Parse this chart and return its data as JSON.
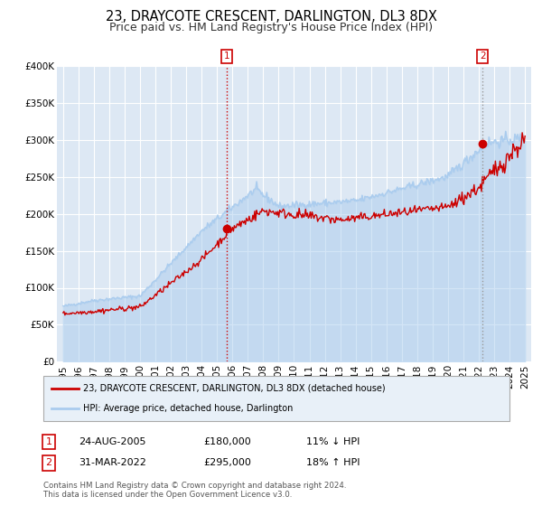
{
  "title": "23, DRAYCOTE CRESCENT, DARLINGTON, DL3 8DX",
  "subtitle": "Price paid vs. HM Land Registry's House Price Index (HPI)",
  "ylim": [
    0,
    400000
  ],
  "yticks": [
    0,
    50000,
    100000,
    150000,
    200000,
    250000,
    300000,
    350000,
    400000
  ],
  "ytick_labels": [
    "£0",
    "£50K",
    "£100K",
    "£150K",
    "£200K",
    "£250K",
    "£300K",
    "£350K",
    "£400K"
  ],
  "xlim_start": 1994.6,
  "xlim_end": 2025.4,
  "xticks": [
    1995,
    1996,
    1997,
    1998,
    1999,
    2000,
    2001,
    2002,
    2003,
    2004,
    2005,
    2006,
    2007,
    2008,
    2009,
    2010,
    2011,
    2012,
    2013,
    2014,
    2015,
    2016,
    2017,
    2018,
    2019,
    2020,
    2021,
    2022,
    2023,
    2024,
    2025
  ],
  "hpi_color": "#aaccee",
  "price_color": "#cc0000",
  "marker1_x": 2005.645,
  "marker1_y": 180000,
  "marker2_x": 2022.247,
  "marker2_y": 295000,
  "vline1_x": 2005.645,
  "vline2_x": 2022.247,
  "legend_line1": "23, DRAYCOTE CRESCENT, DARLINGTON, DL3 8DX (detached house)",
  "legend_line2": "HPI: Average price, detached house, Darlington",
  "annotation1_label": "1",
  "annotation1_date": "24-AUG-2005",
  "annotation1_price": "£180,000",
  "annotation1_pct": "11% ↓ HPI",
  "annotation2_label": "2",
  "annotation2_date": "31-MAR-2022",
  "annotation2_price": "£295,000",
  "annotation2_pct": "18% ↑ HPI",
  "footer1": "Contains HM Land Registry data © Crown copyright and database right 2024.",
  "footer2": "This data is licensed under the Open Government Licence v3.0.",
  "plot_bg_color": "#dde8f4",
  "grid_color": "#ffffff",
  "title_fontsize": 10.5,
  "subtitle_fontsize": 9,
  "tick_fontsize": 7.5,
  "legend_bg_color": "#e8f0f8"
}
